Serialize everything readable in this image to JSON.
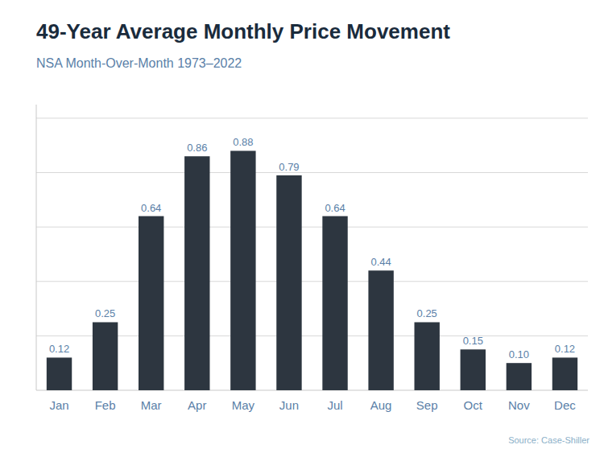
{
  "chart_data": {
    "type": "bar",
    "title": "49-Year Average Monthly Price Movement",
    "subtitle": "NSA Month-Over-Month 1973–2022",
    "source": "Source: Case-Shiller",
    "categories": [
      "Jan",
      "Feb",
      "Mar",
      "Apr",
      "May",
      "Jun",
      "Jul",
      "Aug",
      "Sep",
      "Oct",
      "Nov",
      "Dec"
    ],
    "values": [
      0.12,
      0.25,
      0.64,
      0.86,
      0.88,
      0.79,
      0.64,
      0.44,
      0.25,
      0.15,
      0.1,
      0.12
    ],
    "value_labels": [
      "0.12",
      "0.25",
      "0.64",
      "0.86",
      "0.88",
      "0.79",
      "0.64",
      "0.44",
      "0.25",
      "0.15",
      "0.10",
      "0.12"
    ],
    "color": "#2d3640",
    "ylim": [
      0,
      1.05
    ],
    "yticks": [
      0.2,
      0.4,
      0.6,
      0.8,
      1
    ],
    "grid": true,
    "data_labels": true,
    "tick_labels": "x"
  }
}
